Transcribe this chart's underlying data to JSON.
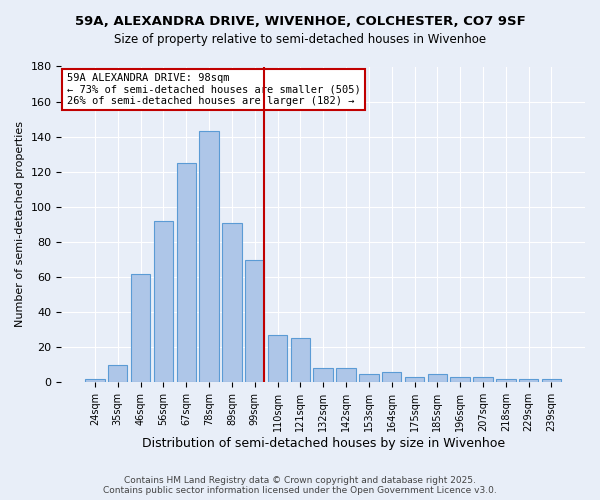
{
  "title_line1": "59A, ALEXANDRA DRIVE, WIVENHOE, COLCHESTER, CO7 9SF",
  "title_line2": "Size of property relative to semi-detached houses in Wivenhoe",
  "xlabel": "Distribution of semi-detached houses by size in Wivenhoe",
  "ylabel": "Number of semi-detached properties",
  "categories": [
    "24sqm",
    "35sqm",
    "46sqm",
    "56sqm",
    "67sqm",
    "78sqm",
    "89sqm",
    "99sqm",
    "110sqm",
    "121sqm",
    "132sqm",
    "142sqm",
    "153sqm",
    "164sqm",
    "175sqm",
    "185sqm",
    "196sqm",
    "207sqm",
    "218sqm",
    "229sqm",
    "239sqm"
  ],
  "values": [
    2,
    10,
    62,
    92,
    125,
    143,
    91,
    70,
    27,
    25,
    8,
    8,
    5,
    6,
    3,
    5,
    3,
    3,
    2,
    2,
    2
  ],
  "bar_color": "#aec6e8",
  "bar_edge_color": "#5b9bd5",
  "vline_x": 7.425,
  "vline_color": "#c00000",
  "annotation_text": "59A ALEXANDRA DRIVE: 98sqm\n← 73% of semi-detached houses are smaller (505)\n26% of semi-detached houses are larger (182) →",
  "annotation_box_color": "white",
  "annotation_box_edge_color": "#c00000",
  "ylim": [
    0,
    180
  ],
  "yticks": [
    0,
    20,
    40,
    60,
    80,
    100,
    120,
    140,
    160,
    180
  ],
  "footer_line1": "Contains HM Land Registry data © Crown copyright and database right 2025.",
  "footer_line2": "Contains public sector information licensed under the Open Government Licence v3.0.",
  "bg_color": "#e8eef8",
  "plot_bg_color": "#e8eef8",
  "grid_color": "white"
}
